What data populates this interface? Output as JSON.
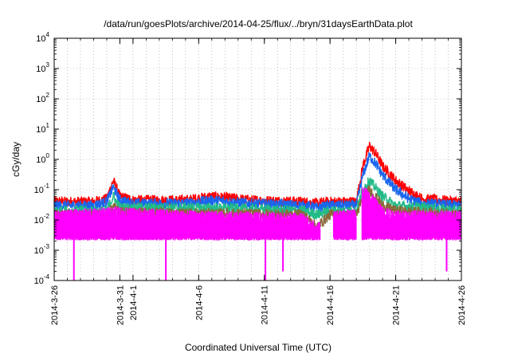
{
  "chart_data": {
    "type": "line",
    "title": "/data/run/goesPlots/archive/2014-04-25/flux/../bryn/31daysEarthData.plot",
    "xlabel": "Coordinated Universal Time (UTC)",
    "ylabel": "cGy/day",
    "y_scale": "log",
    "ylim": [
      0.0001,
      10000
    ],
    "y_ticks": [
      {
        "value": 0.0001,
        "base": "10",
        "exp": "-4"
      },
      {
        "value": 0.001,
        "base": "10",
        "exp": "-3"
      },
      {
        "value": 0.01,
        "base": "10",
        "exp": "-2"
      },
      {
        "value": 0.1,
        "base": "10",
        "exp": "-1"
      },
      {
        "value": 1,
        "base": "10",
        "exp": "0"
      },
      {
        "value": 10,
        "base": "10",
        "exp": "1"
      },
      {
        "value": 100,
        "base": "10",
        "exp": "2"
      },
      {
        "value": 1000,
        "base": "10",
        "exp": "3"
      },
      {
        "value": 10000,
        "base": "10",
        "exp": "4"
      }
    ],
    "xlim": [
      "2014-03-26",
      "2014-04-26"
    ],
    "x_ticks": [
      {
        "date": "2014-03-26",
        "label": "2014-3-26"
      },
      {
        "date": "2014-03-31",
        "label": "2014-3-31"
      },
      {
        "date": "2014-04-01",
        "label": "2014-4-1"
      },
      {
        "date": "2014-04-06",
        "label": "2014-4-6"
      },
      {
        "date": "2014-04-11",
        "label": "2014-4-11"
      },
      {
        "date": "2014-04-16",
        "label": "2014-4-16"
      },
      {
        "date": "2014-04-21",
        "label": "2014-4-21"
      },
      {
        "date": "2014-04-26",
        "label": "2014-4-26"
      }
    ],
    "grid": true,
    "legend": "none",
    "series": [
      {
        "color": "#ff0000",
        "points": [
          [
            "2014-03-26",
            0.04
          ],
          [
            "2014-03-29",
            0.04
          ],
          [
            "2014-03-30",
            0.05
          ],
          [
            "2014-03-30T12:00",
            0.2
          ],
          [
            "2014-03-31",
            0.06
          ],
          [
            "2014-04-01",
            0.045
          ],
          [
            "2014-04-05",
            0.045
          ],
          [
            "2014-04-07",
            0.06
          ],
          [
            "2014-04-10",
            0.045
          ],
          [
            "2014-04-14",
            0.04
          ],
          [
            "2014-04-15",
            0.035
          ],
          [
            "2014-04-16",
            0.04
          ],
          [
            "2014-04-18",
            0.04
          ],
          [
            "2014-04-18T12:00",
            0.6
          ],
          [
            "2014-04-19",
            2.8
          ],
          [
            "2014-04-19T12:00",
            1.5
          ],
          [
            "2014-04-20",
            0.6
          ],
          [
            "2014-04-21",
            0.2
          ],
          [
            "2014-04-22",
            0.09
          ],
          [
            "2014-04-23",
            0.05
          ],
          [
            "2014-04-26",
            0.04
          ]
        ]
      },
      {
        "color": "#1a66ee",
        "points": [
          [
            "2014-03-26",
            0.03
          ],
          [
            "2014-03-29",
            0.03
          ],
          [
            "2014-03-30",
            0.04
          ],
          [
            "2014-03-30T12:00",
            0.12
          ],
          [
            "2014-03-31",
            0.045
          ],
          [
            "2014-04-01",
            0.035
          ],
          [
            "2014-04-05",
            0.035
          ],
          [
            "2014-04-07",
            0.045
          ],
          [
            "2014-04-10",
            0.035
          ],
          [
            "2014-04-14",
            0.03
          ],
          [
            "2014-04-15",
            0.025
          ],
          [
            "2014-04-16",
            0.03
          ],
          [
            "2014-04-18",
            0.03
          ],
          [
            "2014-04-18T12:00",
            0.3
          ],
          [
            "2014-04-19",
            1.3
          ],
          [
            "2014-04-19T12:00",
            0.7
          ],
          [
            "2014-04-20",
            0.3
          ],
          [
            "2014-04-21",
            0.1
          ],
          [
            "2014-04-22",
            0.05
          ],
          [
            "2014-04-23",
            0.035
          ],
          [
            "2014-04-26",
            0.03
          ]
        ]
      },
      {
        "color": "#22bb88",
        "points": [
          [
            "2014-03-26",
            0.02
          ],
          [
            "2014-03-30",
            0.02
          ],
          [
            "2014-03-30T12:00",
            0.06
          ],
          [
            "2014-03-31",
            0.025
          ],
          [
            "2014-04-07",
            0.025
          ],
          [
            "2014-04-14",
            0.02
          ],
          [
            "2014-04-15",
            0.015
          ],
          [
            "2014-04-16",
            0.02
          ],
          [
            "2014-04-18",
            0.02
          ],
          [
            "2014-04-18T12:00",
            0.1
          ],
          [
            "2014-04-19",
            0.2
          ],
          [
            "2014-04-20",
            0.06
          ],
          [
            "2014-04-21",
            0.03
          ],
          [
            "2014-04-26",
            0.02
          ]
        ]
      },
      {
        "color": "#8a6a3a",
        "points": [
          [
            "2014-03-26",
            0.015
          ],
          [
            "2014-03-30",
            0.015
          ],
          [
            "2014-03-30T12:00",
            0.03
          ],
          [
            "2014-03-31",
            0.018
          ],
          [
            "2014-04-14",
            0.015
          ],
          [
            "2014-04-15",
            0.006
          ],
          [
            "2014-04-16",
            0.015
          ],
          [
            "2014-04-18",
            0.015
          ],
          [
            "2014-04-18T12:00",
            0.05
          ],
          [
            "2014-04-19",
            0.1
          ],
          [
            "2014-04-20",
            0.03
          ],
          [
            "2014-04-21",
            0.02
          ],
          [
            "2014-04-26",
            0.015
          ]
        ]
      },
      {
        "color": "#ff00ff",
        "band": [
          0.0025,
          0.012
        ],
        "points": [
          [
            "2014-03-26",
            0.011
          ],
          [
            "2014-03-30T12:00",
            0.015
          ],
          [
            "2014-04-05",
            0.011
          ],
          [
            "2014-04-14",
            0.009
          ],
          [
            "2014-04-15",
            0.004
          ],
          [
            "2014-04-16",
            0.011
          ],
          [
            "2014-04-18",
            0.012
          ],
          [
            "2014-04-18T12:00",
            0.08
          ],
          [
            "2014-04-19",
            0.05
          ],
          [
            "2014-04-20",
            0.015
          ],
          [
            "2014-04-21",
            0.011
          ],
          [
            "2014-04-26",
            0.011
          ]
        ],
        "gaps": [
          [
            "2014-04-15T06:00",
            "2014-04-16T06:00"
          ],
          [
            "2014-04-18",
            "2014-04-18T10:00"
          ]
        ],
        "dropouts": [
          [
            "2014-03-27T12:00",
            0.0001
          ],
          [
            "2014-04-03T12:00",
            0.0001
          ],
          [
            "2014-04-11T02:00",
            0.0001
          ],
          [
            "2014-04-12T10:00",
            0.0002
          ],
          [
            "2014-04-24T21:00",
            0.0002
          ]
        ]
      }
    ]
  }
}
